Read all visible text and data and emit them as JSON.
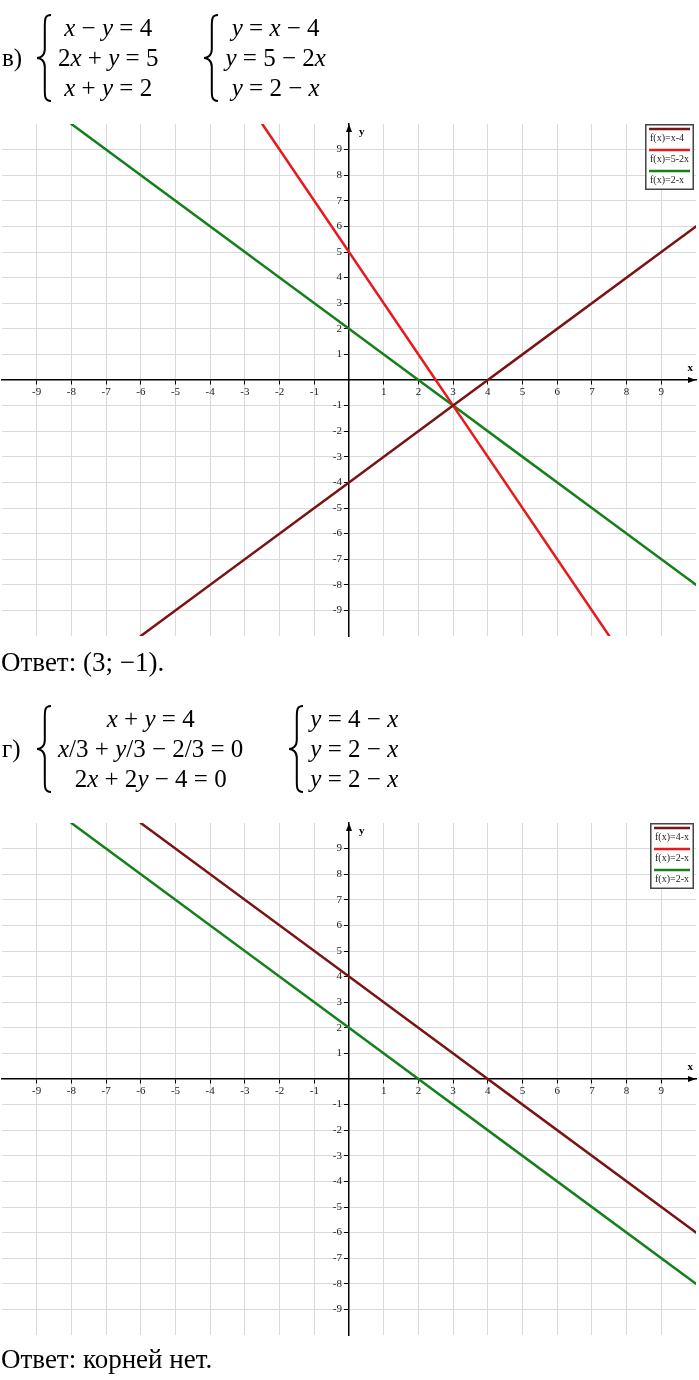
{
  "chart_data": [
    {
      "type": "line",
      "title": "в)",
      "xlabel": "x",
      "ylabel": "y",
      "annotations": [
        "x − y = 4",
        "2x + y = 5",
        "x + y = 2",
        "y = x − 4",
        "y = 5 − 2x",
        "y = 2 − x",
        "Ответ: (3; −1)."
      ],
      "series": [
        {
          "name": "f(x)=x-4",
          "color": "#7a1414",
          "x": [
            -6,
            0,
            3,
            4,
            10
          ],
          "values": [
            -10,
            -4,
            -1,
            0,
            6
          ]
        },
        {
          "name": "f(x)=5-2x",
          "color": "#e8191e",
          "x": [
            -2.5,
            0,
            2.5,
            3,
            7.5
          ],
          "values": [
            10,
            5,
            0,
            -1,
            -10
          ]
        },
        {
          "name": "f(x)=2-x",
          "color": "#13801b",
          "x": [
            -8,
            0,
            2,
            3,
            10
          ],
          "values": [
            10,
            2,
            0,
            -1,
            -8
          ]
        }
      ],
      "xlim": [
        -10,
        10
      ],
      "ylim": [
        -10,
        10
      ],
      "xticks": [
        -9,
        -8,
        -7,
        -6,
        -5,
        -4,
        -3,
        -2,
        -1,
        1,
        2,
        3,
        4,
        5,
        6,
        7,
        8,
        9
      ],
      "yticks": [
        -9,
        -8,
        -7,
        -6,
        -5,
        -4,
        -3,
        -2,
        -1,
        1,
        2,
        3,
        4,
        5,
        6,
        7,
        8,
        9
      ],
      "grid": true,
      "legend": "top right",
      "marker": "none",
      "line_style": "solid"
    },
    {
      "type": "line",
      "title": "г)",
      "xlabel": "x",
      "ylabel": "y",
      "annotations": [
        "x + y = 4",
        "x/3 + y/3 − 2/3 = 0",
        "2x + 2y − 4 = 0",
        "y = 4 − x",
        "y = 2 − x",
        "y = 2 − x",
        "Ответ: корней нет."
      ],
      "series": [
        {
          "name": "f(x)=4-x",
          "color": "#7a1414",
          "x": [
            -6,
            0,
            4,
            10
          ],
          "values": [
            10,
            4,
            0,
            -6
          ]
        },
        {
          "name": "f(x)=2-x",
          "color": "#e8191e"
        },
        {
          "name": "f(x)=2-x",
          "color": "#13801b",
          "x": [
            -8,
            0,
            2,
            10
          ],
          "values": [
            10,
            2,
            0,
            -8
          ]
        }
      ],
      "xlim": [
        -10,
        10
      ],
      "ylim": [
        -10,
        10
      ],
      "xticks": [
        -9,
        -8,
        -7,
        -6,
        -5,
        -4,
        -3,
        -2,
        -1,
        1,
        2,
        3,
        4,
        5,
        6,
        7,
        8,
        9
      ],
      "yticks": [
        -9,
        -8,
        -7,
        -6,
        -5,
        -4,
        -3,
        -2,
        -1,
        1,
        2,
        3,
        4,
        5,
        6,
        7,
        8,
        9
      ],
      "grid": true,
      "legend": "top right",
      "marker": "none",
      "line_style": "solid"
    }
  ]
}
